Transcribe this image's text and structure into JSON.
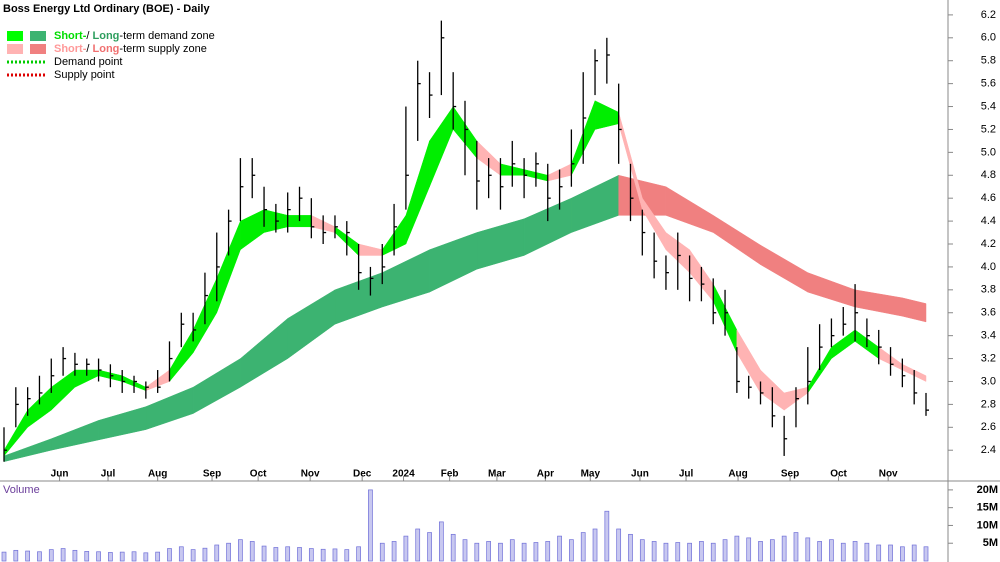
{
  "chart_data": [
    {
      "type": "ohlc",
      "title": "Boss Energy Ltd Ordinary (BOE) - Daily",
      "legend": [
        {
          "parts": [
            {
              "text": "Short-",
              "color": "#00dd00"
            },
            {
              "text": "/ ",
              "color": "#000000"
            },
            {
              "text": "Long",
              "color": "#2e9e5e"
            },
            {
              "text": "-term demand zone",
              "color": "#000000"
            }
          ],
          "swatches": [
            "#00ff00",
            "#3cb371"
          ]
        },
        {
          "parts": [
            {
              "text": "Short-",
              "color": "#ff9999"
            },
            {
              "text": "/ ",
              "color": "#000000"
            },
            {
              "text": "Long",
              "color": "#f07070"
            },
            {
              "text": "-term supply zone",
              "color": "#000000"
            }
          ],
          "swatches": [
            "#ffb3b3",
            "#f08080"
          ]
        },
        {
          "parts": [
            {
              "text": "Demand point",
              "color": "#000000"
            }
          ],
          "line": "#00cc00"
        },
        {
          "parts": [
            {
              "text": "Supply point",
              "color": "#000000"
            }
          ],
          "line": "#dd0000"
        }
      ],
      "xlim": [
        0,
        78
      ],
      "xticks": [
        {
          "value": 4.7,
          "label": "Jun"
        },
        {
          "value": 8.8,
          "label": "Jul"
        },
        {
          "value": 13.0,
          "label": "Aug"
        },
        {
          "value": 17.6,
          "label": "Sep"
        },
        {
          "value": 21.5,
          "label": "Oct"
        },
        {
          "value": 25.9,
          "label": "Nov"
        },
        {
          "value": 30.3,
          "label": "Dec"
        },
        {
          "value": 33.8,
          "label": "2024"
        },
        {
          "value": 37.7,
          "label": "Feb"
        },
        {
          "value": 41.7,
          "label": "Mar"
        },
        {
          "value": 45.8,
          "label": "Apr"
        },
        {
          "value": 49.6,
          "label": "May"
        },
        {
          "value": 53.8,
          "label": "Jun"
        },
        {
          "value": 57.7,
          "label": "Jul"
        },
        {
          "value": 62.1,
          "label": "Aug"
        },
        {
          "value": 66.5,
          "label": "Sep"
        },
        {
          "value": 70.6,
          "label": "Oct"
        },
        {
          "value": 74.8,
          "label": "Nov"
        }
      ],
      "ylim": [
        2.14,
        6.33
      ],
      "yticks": [
        2.4,
        2.6,
        2.8,
        {
          "value": 3,
          "label": "3.0"
        },
        3.2,
        3.4,
        3.6,
        3.8,
        {
          "value": 4,
          "label": "4.0"
        },
        4.2,
        4.4,
        4.6,
        4.8,
        {
          "value": 5,
          "label": "5.0"
        },
        5.2,
        5.4,
        5.6,
        5.8,
        {
          "value": 6,
          "label": "6.0"
        },
        6.2
      ],
      "bar_color": "#000000",
      "close": [
        2.4,
        2.8,
        2.85,
        2.9,
        3.05,
        3.2,
        3.15,
        3.15,
        3.1,
        3.05,
        3.0,
        3.0,
        2.95,
        2.95,
        3.2,
        3.5,
        3.45,
        3.75,
        4.0,
        4.4,
        4.7,
        4.8,
        4.5,
        4.4,
        4.5,
        4.6,
        4.35,
        4.3,
        4.35,
        4.3,
        3.95,
        3.9,
        4.0,
        4.35,
        4.8,
        5.6,
        5.5,
        6.0,
        5.4,
        5.2,
        4.75,
        4.8,
        4.7,
        4.9,
        4.8,
        4.9,
        4.6,
        4.7,
        4.9,
        5.3,
        5.8,
        5.85,
        5.2,
        4.6,
        4.3,
        4.05,
        3.95,
        4.1,
        3.9,
        3.85,
        3.6,
        3.6,
        3.0,
        2.95,
        2.9,
        2.7,
        2.5,
        2.85,
        3.0,
        3.3,
        3.4,
        3.5,
        3.6,
        3.4,
        3.3,
        3.15,
        3.05,
        2.9,
        2.75
      ],
      "high": [
        2.6,
        2.95,
        2.95,
        3.05,
        3.2,
        3.3,
        3.25,
        3.2,
        3.2,
        3.15,
        3.1,
        3.05,
        3.0,
        3.1,
        3.35,
        3.6,
        3.6,
        3.95,
        4.3,
        4.5,
        4.95,
        4.95,
        4.7,
        4.55,
        4.65,
        4.7,
        4.6,
        4.45,
        4.45,
        4.4,
        4.2,
        4.0,
        4.2,
        4.55,
        5.4,
        5.8,
        5.7,
        6.15,
        5.7,
        5.45,
        5.1,
        4.95,
        4.95,
        5.1,
        4.95,
        5.0,
        4.9,
        4.85,
        5.2,
        5.7,
        5.9,
        6.0,
        5.6,
        4.9,
        4.5,
        4.3,
        4.1,
        4.3,
        4.1,
        4.0,
        3.9,
        3.8,
        3.3,
        3.05,
        3.0,
        2.95,
        2.7,
        2.95,
        3.3,
        3.5,
        3.55,
        3.65,
        3.85,
        3.55,
        3.45,
        3.3,
        3.2,
        3.1,
        2.9
      ],
      "low": [
        2.3,
        2.6,
        2.7,
        2.8,
        2.9,
        3.05,
        3.05,
        3.05,
        3.0,
        2.95,
        2.9,
        2.9,
        2.85,
        2.9,
        3.0,
        3.3,
        3.35,
        3.5,
        3.7,
        4.1,
        4.4,
        4.6,
        4.35,
        4.3,
        4.3,
        4.4,
        4.25,
        4.2,
        4.25,
        4.1,
        3.8,
        3.75,
        3.85,
        4.1,
        4.5,
        5.1,
        5.3,
        5.5,
        5.2,
        4.8,
        4.5,
        4.6,
        4.5,
        4.7,
        4.6,
        4.7,
        4.4,
        4.5,
        4.7,
        4.9,
        5.5,
        5.6,
        4.9,
        4.4,
        4.1,
        3.9,
        3.8,
        3.8,
        3.7,
        3.7,
        3.5,
        3.4,
        2.9,
        2.85,
        2.8,
        2.6,
        2.35,
        2.6,
        2.8,
        3.1,
        3.3,
        3.4,
        3.35,
        3.3,
        3.15,
        3.05,
        2.95,
        2.8,
        2.7
      ],
      "bands": [
        {
          "x": [
            0,
            4,
            8,
            12,
            16,
            20,
            24,
            28,
            32,
            36,
            40,
            44,
            48,
            52,
            56,
            60,
            64,
            68,
            72,
            76,
            78
          ],
          "upper": [
            2.35,
            2.5,
            2.66,
            2.78,
            2.95,
            3.2,
            3.55,
            3.8,
            3.95,
            4.15,
            4.3,
            4.42,
            4.6,
            4.8,
            4.7,
            4.45,
            4.19,
            3.95,
            3.8,
            3.73,
            3.68
          ],
          "lower": [
            2.3,
            2.4,
            2.49,
            2.58,
            2.72,
            2.95,
            3.2,
            3.5,
            3.65,
            3.78,
            3.98,
            4.1,
            4.3,
            4.45,
            4.45,
            4.3,
            4.02,
            3.78,
            3.65,
            3.57,
            3.52
          ],
          "demand_color": "#3cb371",
          "supply_color": "#f08080"
        },
        {
          "x": [
            0,
            2,
            4,
            6,
            8,
            10,
            12,
            14,
            16,
            18,
            20,
            22,
            24,
            26,
            28,
            30,
            32,
            34,
            36,
            38,
            40,
            42,
            44,
            46,
            48,
            50,
            52,
            54,
            56,
            58,
            60,
            62,
            64,
            66,
            68,
            70,
            72,
            74,
            76,
            78
          ],
          "upper": [
            2.4,
            2.75,
            2.95,
            3.1,
            3.1,
            3.05,
            2.95,
            3.1,
            3.45,
            3.9,
            4.4,
            4.5,
            4.45,
            4.45,
            4.35,
            4.2,
            4.15,
            4.45,
            5.1,
            5.4,
            5.1,
            4.9,
            4.85,
            4.8,
            4.9,
            5.45,
            5.35,
            4.6,
            4.3,
            4.15,
            3.85,
            3.45,
            3.1,
            2.9,
            2.95,
            3.3,
            3.45,
            3.3,
            3.15,
            3.05
          ],
          "lower": [
            2.35,
            2.6,
            2.75,
            2.95,
            3.05,
            3.0,
            2.92,
            3.0,
            3.25,
            3.6,
            4.15,
            4.3,
            4.35,
            4.35,
            4.3,
            4.1,
            4.1,
            4.2,
            4.7,
            5.2,
            4.95,
            4.8,
            4.8,
            4.75,
            4.8,
            5.2,
            5.25,
            4.5,
            4.15,
            3.95,
            3.7,
            3.25,
            2.9,
            2.75,
            2.9,
            3.2,
            3.35,
            3.2,
            3.1,
            3.0
          ],
          "demand_color": "#00ee00",
          "supply_color": "#ffb3b3"
        }
      ]
    },
    {
      "type": "bar",
      "title": "Volume",
      "color": "#6f6fd8",
      "ylim": [
        0,
        22500000
      ],
      "yticks": [
        {
          "value": 5000000,
          "label": "5M"
        },
        {
          "value": 10000000,
          "label": "10M"
        },
        {
          "value": 15000000,
          "label": "15M"
        },
        {
          "value": 20000000,
          "label": "20M"
        }
      ],
      "values": [
        2500000,
        3000000,
        2800000,
        2600000,
        3200000,
        3500000,
        3000000,
        2700000,
        2600000,
        2400000,
        2500000,
        2600000,
        2300000,
        2500000,
        3500000,
        4000000,
        3200000,
        3600000,
        4500000,
        5000000,
        6000000,
        5500000,
        4200000,
        3800000,
        4000000,
        3800000,
        3500000,
        3300000,
        3400000,
        3200000,
        4000000,
        20000000,
        5000000,
        5500000,
        7000000,
        9000000,
        8000000,
        11000000,
        7500000,
        6000000,
        5000000,
        5500000,
        5000000,
        6000000,
        5000000,
        5200000,
        5500000,
        7000000,
        6000000,
        8000000,
        9000000,
        14000000,
        9000000,
        7500000,
        6000000,
        5500000,
        5000000,
        5200000,
        5000000,
        5500000,
        5000000,
        6000000,
        7000000,
        6500000,
        5500000,
        6000000,
        7000000,
        8000000,
        6500000,
        5500000,
        6000000,
        5000000,
        5500000,
        5000000,
        4500000,
        4500000,
        4000000,
        4500000,
        4000000
      ]
    }
  ]
}
